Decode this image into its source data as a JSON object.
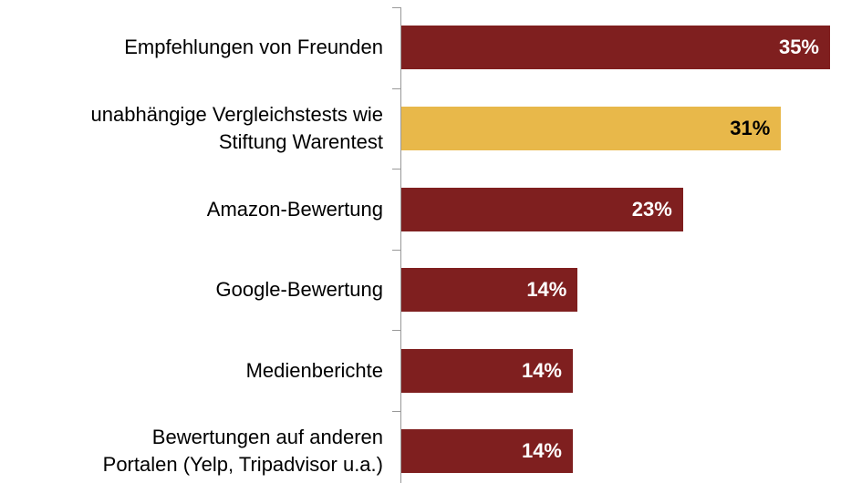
{
  "chart_data": {
    "type": "bar",
    "orientation": "horizontal",
    "categories": [
      "Empfehlungen von Freunden",
      "unabhängige Vergleichstests wie\nStiftung Warentest",
      "Amazon-Bewertung",
      "Google-Bewertung",
      "Medienberichte",
      "Bewertungen auf anderen\nPortalen (Yelp, Tripadvisor u.a.)"
    ],
    "values": [
      35,
      31,
      23,
      14.4,
      14,
      14
    ],
    "value_labels": [
      "35%",
      "31%",
      "23%",
      "14%",
      "14%",
      "14%"
    ],
    "colors": [
      "#7f1f1f",
      "#e8b84a",
      "#7f1f1f",
      "#7f1f1f",
      "#7f1f1f",
      "#7f1f1f"
    ]
  }
}
